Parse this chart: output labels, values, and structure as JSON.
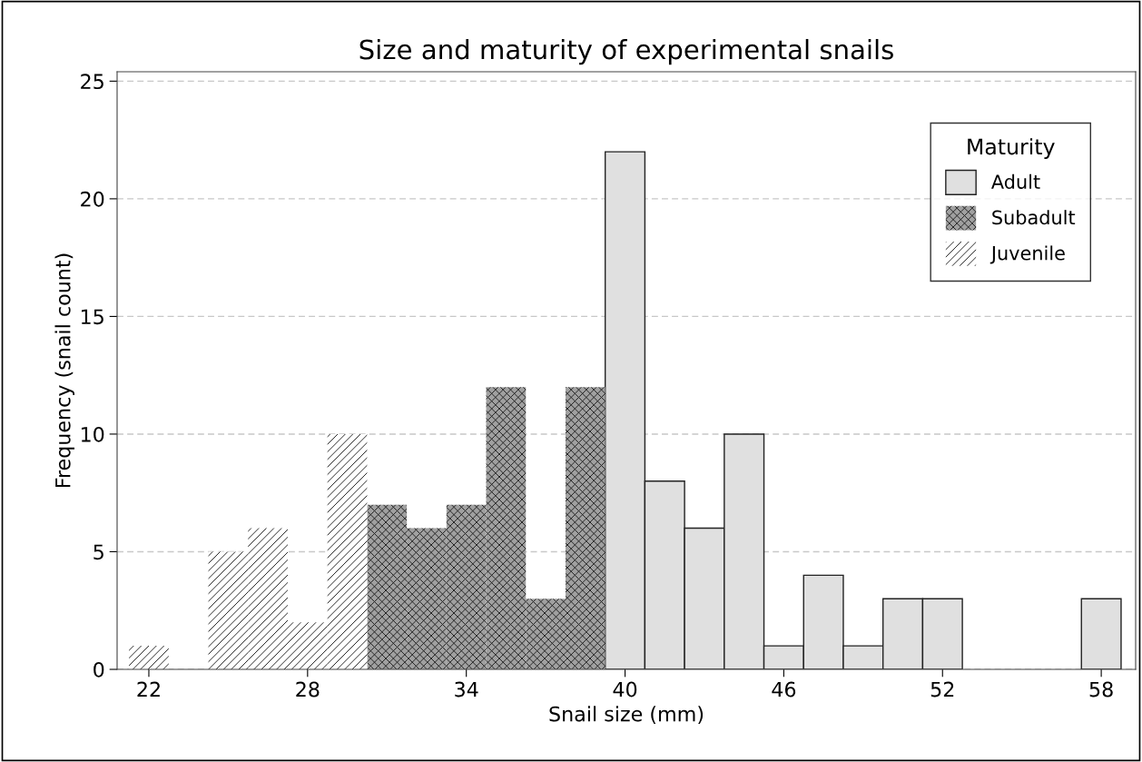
{
  "chart_data": {
    "type": "histogram",
    "title": "Size and maturity of experimental snails",
    "xlabel": "Snail size (mm)",
    "ylabel": "Frequency (snail count)",
    "legend_title": "Maturity",
    "bins": [
      21.25,
      22.75,
      24.25,
      25.75,
      27.25,
      28.75,
      30.25,
      31.75,
      33.25,
      34.75,
      36.25,
      37.75,
      39.25,
      40.75,
      42.25,
      43.75,
      45.25,
      46.75,
      48.25,
      49.75,
      51.25,
      52.75,
      54.25,
      55.75,
      57.25,
      58.75
    ],
    "series": [
      {
        "name": "Adult",
        "color": "#e0e0e0",
        "values": [
          null,
          null,
          null,
          null,
          null,
          null,
          null,
          null,
          null,
          null,
          null,
          null,
          22,
          8,
          6,
          10,
          1,
          4,
          1,
          3,
          3,
          0,
          0,
          0,
          3
        ]
      },
      {
        "name": "Subadult",
        "color": "#a0a0a0",
        "values": [
          null,
          null,
          null,
          null,
          null,
          null,
          7,
          6,
          7,
          12,
          3,
          12,
          null,
          null,
          null,
          null,
          null,
          null,
          null,
          null,
          null,
          null,
          null,
          null,
          null
        ]
      },
      {
        "name": "Juvenile",
        "color": "#ffffff",
        "values": [
          1,
          0,
          5,
          6,
          2,
          10,
          null,
          null,
          null,
          null,
          null,
          null,
          null,
          null,
          null,
          null,
          null,
          null,
          null,
          null,
          null,
          null,
          null,
          null,
          null
        ]
      }
    ],
    "xlim": [
      20.8,
      59.3
    ],
    "ylim": [
      0,
      25.4
    ],
    "xticks": [
      22,
      28,
      34,
      40,
      46,
      52,
      58
    ],
    "yticks": [
      0,
      5,
      10,
      15,
      20,
      25
    ],
    "grid": "y",
    "legend": "top right"
  }
}
